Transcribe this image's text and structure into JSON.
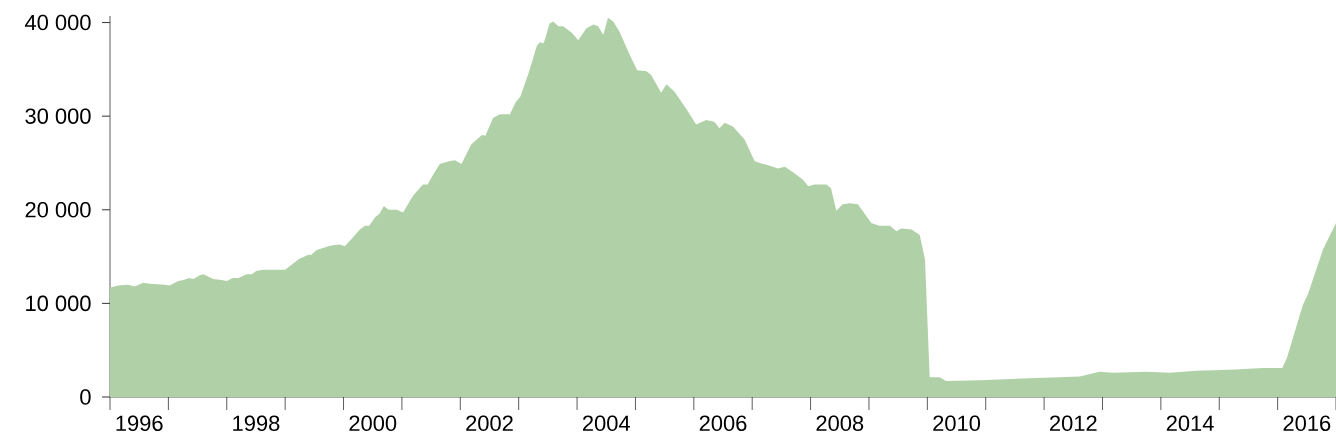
{
  "chart_data": {
    "type": "area",
    "color": "#b0d1a7",
    "x": [
      1996.0,
      1996.14,
      1996.31,
      1996.42,
      1996.57,
      1996.68,
      1996.94,
      1997.02,
      1997.17,
      1997.26,
      1997.35,
      1997.43,
      1997.54,
      1997.6,
      1997.77,
      1997.91,
      1998.0,
      1998.1,
      1998.2,
      1998.34,
      1998.43,
      1998.51,
      1998.63,
      1998.85,
      1999.0,
      1999.08,
      1999.25,
      1999.4,
      1999.45,
      1999.54,
      1999.74,
      1999.82,
      1999.94,
      2000.02,
      2000.14,
      2000.28,
      2000.37,
      2000.44,
      2000.54,
      2000.62,
      2000.69,
      2000.77,
      2000.91,
      2001.02,
      2001.19,
      2001.36,
      2001.44,
      2001.54,
      2001.65,
      2001.82,
      2001.91,
      2002.02,
      2002.19,
      2002.37,
      2002.43,
      2002.56,
      2002.68,
      2002.85,
      2002.95,
      2003.03,
      2003.18,
      2003.31,
      2003.36,
      2003.43,
      2003.53,
      2003.59,
      2003.68,
      2003.76,
      2003.91,
      2004.02,
      2004.16,
      2004.28,
      2004.36,
      2004.45,
      2004.53,
      2004.62,
      2004.73,
      2004.9,
      2005.03,
      2005.19,
      2005.27,
      2005.44,
      2005.53,
      2005.67,
      2005.87,
      2006.04,
      2006.21,
      2006.35,
      2006.44,
      2006.53,
      2006.67,
      2006.87,
      2007.04,
      2007.13,
      2007.3,
      2007.44,
      2007.56,
      2007.7,
      2007.87,
      2007.96,
      2008.07,
      2008.27,
      2008.35,
      2008.44,
      2008.55,
      2008.67,
      2008.81,
      2009.04,
      2009.18,
      2009.36,
      2009.47,
      2009.55,
      2009.73,
      2009.87,
      2009.96,
      2010.04,
      2010.21,
      2010.32,
      2010.9,
      2011.75,
      2012.61,
      2012.95,
      2013.18,
      2013.75,
      2014.15,
      2014.61,
      2015.18,
      2015.75,
      2016.08,
      2016.16,
      2016.43,
      2016.52,
      2016.78,
      2017.0
    ],
    "values": [
      11700,
      11900,
      12000,
      11800,
      12200,
      12100,
      12000,
      11900,
      12400,
      12500,
      12700,
      12600,
      13000,
      13100,
      12600,
      12500,
      12400,
      12700,
      12700,
      13100,
      13100,
      13500,
      13600,
      13600,
      13600,
      14000,
      14800,
      15200,
      15200,
      15700,
      16100,
      16200,
      16300,
      16100,
      16900,
      17900,
      18300,
      18300,
      19200,
      19600,
      20400,
      20000,
      20000,
      19700,
      21500,
      22700,
      22700,
      23800,
      24900,
      25200,
      25300,
      24900,
      27000,
      28000,
      27900,
      29800,
      30200,
      30200,
      31500,
      32100,
      34800,
      37500,
      37900,
      37800,
      39900,
      40100,
      39600,
      39600,
      38900,
      38100,
      39400,
      39800,
      39600,
      38700,
      40500,
      40100,
      39000,
      36600,
      34900,
      34800,
      34400,
      32500,
      33400,
      32600,
      30800,
      29100,
      29600,
      29400,
      28700,
      29300,
      28900,
      27500,
      25200,
      25000,
      24700,
      24400,
      24600,
      24000,
      23200,
      22500,
      22700,
      22700,
      22300,
      19900,
      20600,
      20700,
      20600,
      18600,
      18300,
      18300,
      17700,
      18000,
      17900,
      17300,
      14700,
      2100,
      2100,
      1700,
      1800,
      2000,
      2200,
      2700,
      2600,
      2700,
      2600,
      2800,
      2900,
      3100,
      3100,
      4200,
      9800,
      11000,
      15800,
      18600
    ],
    "xlim": [
      1996,
      2017
    ],
    "xticks": [
      {
        "value": 1996,
        "label": null
      },
      {
        "value": 1997,
        "label": null
      },
      {
        "value": 1998,
        "label": null
      },
      {
        "value": 1999,
        "label": null
      },
      {
        "value": 2000,
        "label": null
      },
      {
        "value": 2001,
        "label": null
      },
      {
        "value": 2002,
        "label": null
      },
      {
        "value": 2003,
        "label": null
      },
      {
        "value": 2004,
        "label": null
      },
      {
        "value": 2005,
        "label": null
      },
      {
        "value": 2006,
        "label": null
      },
      {
        "value": 2007,
        "label": null
      },
      {
        "value": 2008,
        "label": null
      },
      {
        "value": 2009,
        "label": null
      },
      {
        "value": 2010,
        "label": null
      },
      {
        "value": 2011,
        "label": null
      },
      {
        "value": 2012,
        "label": null
      },
      {
        "value": 2013,
        "label": null
      },
      {
        "value": 2014,
        "label": null
      },
      {
        "value": 2015,
        "label": null
      },
      {
        "value": 2016,
        "label": null
      },
      {
        "value": 2017,
        "label": null
      },
      {
        "value": 1996.5,
        "label": "1996"
      },
      {
        "value": 1998.5,
        "label": "1998"
      },
      {
        "value": 2000.5,
        "label": "2000"
      },
      {
        "value": 2002.5,
        "label": "2002"
      },
      {
        "value": 2004.5,
        "label": "2004"
      },
      {
        "value": 2006.5,
        "label": "2006"
      },
      {
        "value": 2008.5,
        "label": "2008"
      },
      {
        "value": 2010.5,
        "label": "2010"
      },
      {
        "value": 2012.5,
        "label": "2012"
      },
      {
        "value": 2014.5,
        "label": "2014"
      },
      {
        "value": 2016.5,
        "label": "2016"
      }
    ],
    "ylim": [
      0,
      40700
    ],
    "yticks": [
      0,
      {
        "value": 10000,
        "label": "10 000"
      },
      {
        "value": 20000,
        "label": "20 000"
      },
      {
        "value": 30000,
        "label": "30 000"
      },
      {
        "value": 40000,
        "label": "40 000"
      }
    ]
  }
}
